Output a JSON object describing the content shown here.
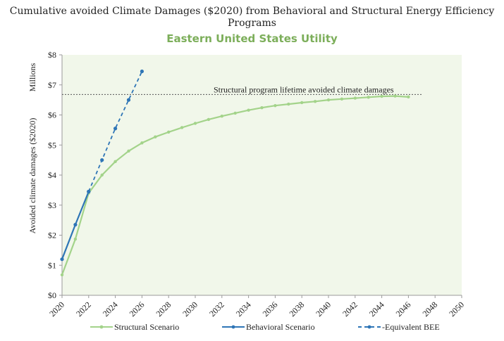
{
  "chart_data": {
    "type": "line",
    "title": "Cumulative avoided Climate Damages ($2020) from Behavioral and Structural Energy Efficiency Programs",
    "subtitle": "Eastern United States Utility",
    "ylabel": "Avoided climate damages ($2020)",
    "yunits": "Millions",
    "ylim": [
      0,
      8
    ],
    "xlim": [
      2020,
      2050
    ],
    "y_ticks": [
      "$0",
      "$1",
      "$2",
      "$3",
      "$4",
      "$5",
      "$6",
      "$7",
      "$8"
    ],
    "x_ticks": [
      "2020",
      "2022",
      "2024",
      "2026",
      "2028",
      "2030",
      "2032",
      "2034",
      "2036",
      "2038",
      "2040",
      "2042",
      "2044",
      "2046",
      "2048",
      "2050"
    ],
    "reference_line": {
      "label": "Structural program lifetime  avoided climate damages",
      "value": 6.68
    },
    "background": "#f1f7ea",
    "series": [
      {
        "name": "Structural Scenario",
        "color": "#a3d38a",
        "style": "solid",
        "x": [
          2020,
          2021,
          2022,
          2023,
          2024,
          2025,
          2026,
          2027,
          2028,
          2029,
          2030,
          2031,
          2032,
          2033,
          2034,
          2035,
          2036,
          2037,
          2038,
          2039,
          2040,
          2041,
          2042,
          2043,
          2044,
          2045,
          2046
        ],
        "values": [
          0.68,
          1.87,
          3.4,
          4.0,
          4.45,
          4.8,
          5.07,
          5.27,
          5.43,
          5.58,
          5.72,
          5.85,
          5.96,
          6.06,
          6.16,
          6.24,
          6.31,
          6.36,
          6.41,
          6.45,
          6.5,
          6.53,
          6.56,
          6.59,
          6.62,
          6.63,
          6.6
        ]
      },
      {
        "name": "Behavioral Scenario",
        "color": "#2e75b6",
        "style": "solid",
        "x": [
          2020,
          2021,
          2022
        ],
        "values": [
          1.2,
          2.35,
          3.45
        ]
      },
      {
        "name": "Equivalent BEE",
        "color": "#2e75b6",
        "style": "dashed",
        "x": [
          2022,
          2023,
          2024,
          2025,
          2026
        ],
        "values": [
          3.45,
          4.5,
          5.55,
          6.5,
          7.45
        ]
      }
    ],
    "legend": {
      "position": "bottom"
    },
    "grid": false
  }
}
